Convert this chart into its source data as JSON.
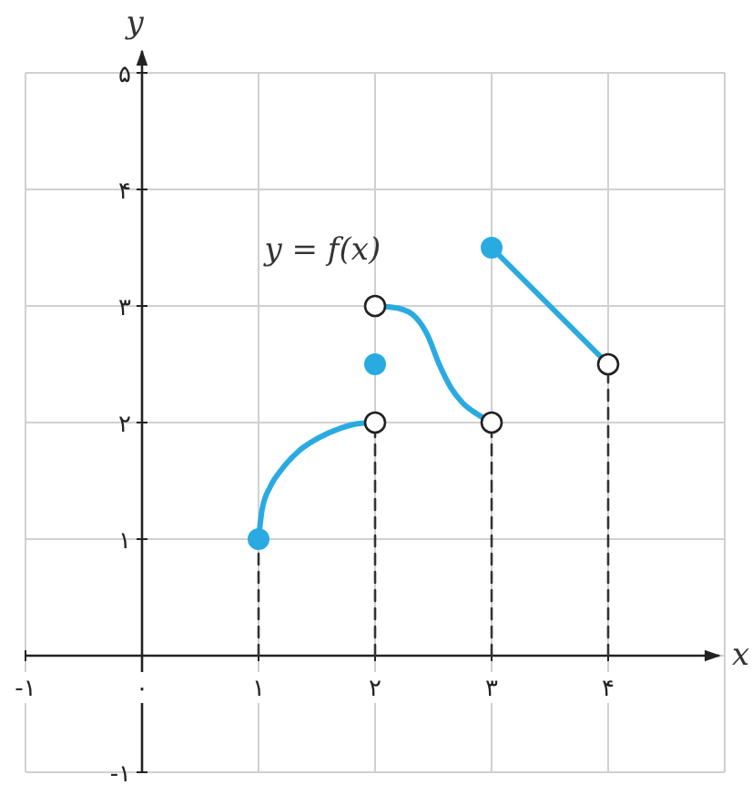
{
  "chart_data": {
    "type": "line",
    "xlabel": "x",
    "ylabel": "y",
    "annotations": [
      "y = f(x)"
    ],
    "xlim": [
      -1,
      5
    ],
    "ylim": [
      -1,
      5
    ],
    "xticks": [
      {
        "value": -1,
        "label": "-۱"
      },
      {
        "value": 0,
        "label": "۰"
      },
      {
        "value": 1,
        "label": "۱"
      },
      {
        "value": 2,
        "label": "۲"
      },
      {
        "value": 3,
        "label": "۳"
      },
      {
        "value": 4,
        "label": "۴"
      }
    ],
    "yticks": [
      {
        "value": -1,
        "label": "-۱"
      },
      {
        "value": 1,
        "label": "۱"
      },
      {
        "value": 2,
        "label": "۲"
      },
      {
        "value": 3,
        "label": "۳"
      },
      {
        "value": 4,
        "label": "۴"
      },
      {
        "value": 5,
        "label": "۵"
      }
    ],
    "grid": true,
    "series": [
      {
        "line_style": "dashed",
        "color": "#333333",
        "x": [
          1,
          1
        ],
        "values": [
          0,
          1
        ]
      },
      {
        "line_style": "dashed",
        "color": "#333333",
        "x": [
          2,
          2
        ],
        "values": [
          0,
          2
        ]
      },
      {
        "line_style": "dashed",
        "color": "#333333",
        "x": [
          3,
          3
        ],
        "values": [
          0,
          2
        ]
      },
      {
        "line_style": "dashed",
        "color": "#333333",
        "x": [
          4,
          4
        ],
        "values": [
          0,
          2.5
        ]
      },
      {
        "line_style": "solid",
        "color": "#29abe2",
        "x": [
          1,
          1.03,
          1.1,
          1.2,
          1.35,
          1.5,
          1.7,
          1.85,
          2
        ],
        "values": [
          1,
          1.25,
          1.45,
          1.6,
          1.76,
          1.86,
          1.95,
          1.99,
          2
        ]
      },
      {
        "line_style": "solid",
        "color": "#29abe2",
        "x": [
          2,
          2.2,
          2.35,
          2.45,
          2.55,
          2.65,
          2.75,
          2.88,
          3
        ],
        "values": [
          3,
          2.98,
          2.9,
          2.75,
          2.5,
          2.3,
          2.17,
          2.07,
          2
        ]
      },
      {
        "line_style": "solid",
        "color": "#29abe2",
        "x": [
          3,
          4
        ],
        "values": [
          3.5,
          2.5
        ]
      },
      {
        "type": "scatter",
        "marker": "circle",
        "color": "#29abe2",
        "x": [
          1,
          2,
          3
        ],
        "values": [
          1,
          2.5,
          3.5
        ]
      },
      {
        "type": "scatter",
        "marker": "circle",
        "color": "#ffffff",
        "x": [
          2,
          2,
          3,
          4
        ],
        "values": [
          2,
          3,
          2,
          2.5
        ]
      }
    ]
  }
}
